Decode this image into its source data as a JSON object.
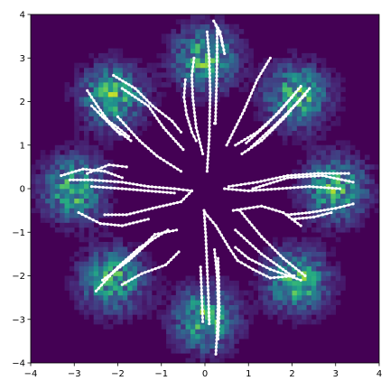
{
  "chart_data": {
    "type": "heatmap",
    "title": "",
    "xlabel": "",
    "ylabel": "",
    "xlim": [
      -4,
      4
    ],
    "ylim": [
      -4,
      4
    ],
    "x_ticks": [
      "−4",
      "−3",
      "−2",
      "−1",
      "0",
      "1",
      "2",
      "3",
      "4"
    ],
    "y_ticks": [
      "4",
      "3",
      "2",
      "1",
      "0",
      "−1",
      "−2",
      "−3",
      "−4"
    ],
    "grid": false,
    "legend": "none",
    "background_color": "#440154",
    "colormap": "viridis",
    "trajectory_color": "#ffffff",
    "density_clusters": [
      {
        "x": 0,
        "y": 3
      },
      {
        "x": 2.12,
        "y": 2.12
      },
      {
        "x": 3,
        "y": 0
      },
      {
        "x": 2.12,
        "y": -2.12
      },
      {
        "x": 0,
        "y": -3
      },
      {
        "x": -2.12,
        "y": -2.12
      },
      {
        "x": -3,
        "y": 0
      },
      {
        "x": -2.12,
        "y": 2.12
      }
    ],
    "trajectories": [
      [
        [
          0.2,
          3.85
        ],
        [
          0.35,
          3.6
        ],
        [
          0.4,
          3.3
        ]
      ],
      [
        [
          0.25,
          3.75
        ],
        [
          0.38,
          3.45
        ],
        [
          0.45,
          3.1
        ]
      ],
      [
        [
          0.28,
          3.7
        ],
        [
          0.28,
          3.2
        ],
        [
          0.27,
          2.5
        ],
        [
          0.24,
          1.5
        ],
        [
          0.22,
          1.5
        ]
      ],
      [
        [
          0.05,
          3.6
        ],
        [
          0.1,
          3.0
        ],
        [
          0.12,
          2.2
        ],
        [
          0.1,
          1.2
        ],
        [
          0.05,
          0.4
        ]
      ],
      [
        [
          -0.25,
          3.0
        ],
        [
          -0.3,
          2.6
        ],
        [
          -0.28,
          2.1
        ],
        [
          -0.2,
          1.4
        ],
        [
          -0.05,
          0.8
        ]
      ],
      [
        [
          -0.45,
          2.5
        ],
        [
          -0.48,
          2.1
        ],
        [
          -0.42,
          1.7
        ],
        [
          -0.3,
          1.3
        ],
        [
          -0.2,
          1.1
        ]
      ],
      [
        [
          1.5,
          3.0
        ],
        [
          1.2,
          2.5
        ],
        [
          0.9,
          1.8
        ],
        [
          0.5,
          1.0
        ]
      ],
      [
        [
          2.2,
          2.35
        ],
        [
          1.7,
          1.75
        ],
        [
          1.2,
          1.3
        ],
        [
          0.7,
          1.0
        ]
      ],
      [
        [
          2.4,
          2.3
        ],
        [
          1.8,
          1.6
        ],
        [
          1.3,
          1.1
        ],
        [
          0.85,
          0.8
        ]
      ],
      [
        [
          2.3,
          2.15
        ],
        [
          1.6,
          1.45
        ],
        [
          1.0,
          0.9
        ]
      ],
      [
        [
          2.0,
          2.1
        ],
        [
          1.4,
          1.45
        ],
        [
          0.95,
          1.05
        ]
      ],
      [
        [
          3.3,
          0.35
        ],
        [
          2.6,
          0.35
        ],
        [
          1.9,
          0.3
        ],
        [
          1.2,
          0.15
        ],
        [
          0.55,
          0.05
        ]
      ],
      [
        [
          3.4,
          0.15
        ],
        [
          2.7,
          0.3
        ],
        [
          1.9,
          0.25
        ],
        [
          1.1,
          0.0
        ]
      ],
      [
        [
          3.1,
          0.0
        ],
        [
          2.4,
          0.05
        ],
        [
          1.7,
          0.0
        ],
        [
          1.0,
          -0.05
        ],
        [
          0.45,
          0.0
        ]
      ],
      [
        [
          3.4,
          -0.35
        ],
        [
          3.0,
          -0.45
        ],
        [
          2.4,
          -0.55
        ],
        [
          1.9,
          -0.6
        ]
      ],
      [
        [
          2.9,
          -0.55
        ],
        [
          2.5,
          -0.65
        ],
        [
          2.0,
          -0.7
        ]
      ],
      [
        [
          2.2,
          -0.85
        ],
        [
          1.8,
          -0.55
        ],
        [
          1.3,
          -0.4
        ],
        [
          0.65,
          -0.5
        ]
      ],
      [
        [
          2.3,
          -2.0
        ],
        [
          1.8,
          -1.6
        ],
        [
          1.3,
          -1.1
        ],
        [
          0.8,
          -0.5
        ]
      ],
      [
        [
          2.0,
          -2.0
        ],
        [
          1.3,
          -1.5
        ],
        [
          0.7,
          -0.95
        ]
      ],
      [
        [
          2.2,
          -2.1
        ],
        [
          1.5,
          -1.85
        ],
        [
          1.0,
          -1.6
        ],
        [
          0.7,
          -1.35
        ]
      ],
      [
        [
          2.05,
          -2.0
        ],
        [
          1.5,
          -2.05
        ],
        [
          1.1,
          -1.85
        ],
        [
          0.75,
          -1.65
        ],
        [
          0.55,
          -1.35
        ],
        [
          0.25,
          -0.85
        ],
        [
          0.0,
          -0.55
        ]
      ],
      [
        [
          0.25,
          -3.8
        ],
        [
          0.28,
          -3.3
        ],
        [
          0.3,
          -2.6
        ],
        [
          0.28,
          -2.0
        ],
        [
          0.22,
          -1.4
        ]
      ],
      [
        [
          0.3,
          -3.45
        ],
        [
          0.33,
          -2.8
        ],
        [
          0.32,
          -2.1
        ],
        [
          0.3,
          -1.6
        ]
      ],
      [
        [
          0.1,
          -3.1
        ],
        [
          0.08,
          -2.5
        ],
        [
          0.05,
          -1.8
        ],
        [
          0.02,
          -1.1
        ],
        [
          -0.02,
          -0.5
        ]
      ],
      [
        [
          -0.05,
          -3.05
        ],
        [
          -0.07,
          -2.5
        ],
        [
          -0.1,
          -1.8
        ]
      ],
      [
        [
          -2.5,
          -2.35
        ],
        [
          -2.0,
          -1.8
        ],
        [
          -1.5,
          -1.35
        ],
        [
          -0.85,
          -0.95
        ]
      ],
      [
        [
          -2.35,
          -2.1
        ],
        [
          -1.75,
          -1.65
        ],
        [
          -1.25,
          -1.2
        ]
      ],
      [
        [
          -1.9,
          -2.2
        ],
        [
          -1.45,
          -1.95
        ],
        [
          -0.9,
          -1.75
        ],
        [
          -0.6,
          -1.45
        ]
      ],
      [
        [
          -2.1,
          -1.9
        ],
        [
          -1.6,
          -1.5
        ],
        [
          -1.15,
          -1.05
        ],
        [
          -0.65,
          -0.95
        ]
      ],
      [
        [
          -2.9,
          -0.55
        ],
        [
          -2.4,
          -0.8
        ],
        [
          -1.9,
          -0.85
        ],
        [
          -1.3,
          -0.7
        ]
      ],
      [
        [
          -2.3,
          -0.6
        ],
        [
          -1.8,
          -0.6
        ],
        [
          -1.2,
          -0.45
        ],
        [
          -0.55,
          -0.3
        ],
        [
          -0.3,
          -0.05
        ]
      ],
      [
        [
          -3.3,
          0.3
        ],
        [
          -2.8,
          0.45
        ],
        [
          -2.3,
          0.4
        ],
        [
          -1.9,
          0.25
        ]
      ],
      [
        [
          -3.1,
          0.2
        ],
        [
          -2.6,
          0.2
        ],
        [
          -1.9,
          0.15
        ],
        [
          -1.3,
          0.05
        ],
        [
          -0.7,
          0.0
        ],
        [
          -0.3,
          -0.05
        ]
      ],
      [
        [
          -2.6,
          0.05
        ],
        [
          -1.9,
          0.0
        ],
        [
          -1.3,
          -0.05
        ],
        [
          -0.7,
          -0.1
        ]
      ],
      [
        [
          -2.7,
          0.35
        ],
        [
          -2.2,
          0.55
        ],
        [
          -1.8,
          0.5
        ]
      ],
      [
        [
          -2.7,
          2.25
        ],
        [
          -2.4,
          1.8
        ],
        [
          -2.1,
          1.4
        ],
        [
          -1.7,
          1.1
        ]
      ],
      [
        [
          -2.1,
          2.6
        ],
        [
          -1.6,
          2.3
        ],
        [
          -1.2,
          1.9
        ],
        [
          -0.75,
          1.55
        ],
        [
          -0.55,
          1.3
        ]
      ],
      [
        [
          -1.9,
          2.3
        ],
        [
          -1.3,
          1.9
        ],
        [
          -0.95,
          1.4
        ],
        [
          -0.5,
          0.9
        ]
      ],
      [
        [
          -2.0,
          1.65
        ],
        [
          -1.5,
          1.1
        ],
        [
          -1.1,
          0.75
        ],
        [
          -0.55,
          0.4
        ]
      ],
      [
        [
          -2.35,
          1.65
        ],
        [
          -2.0,
          1.4
        ],
        [
          -1.75,
          1.2
        ]
      ],
      [
        [
          -2.6,
          1.9
        ],
        [
          -2.25,
          1.55
        ],
        [
          -1.95,
          1.25
        ]
      ]
    ]
  }
}
